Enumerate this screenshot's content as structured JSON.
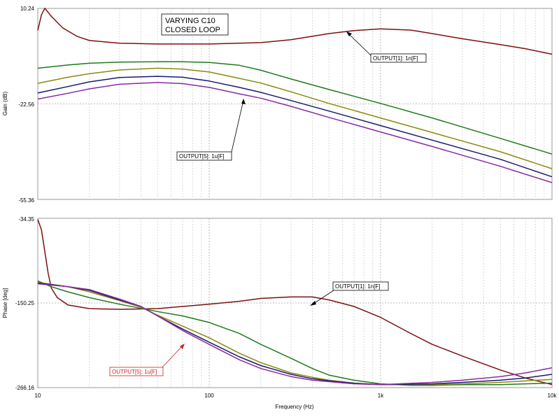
{
  "chart_data": [
    {
      "type": "line",
      "panel": "gain",
      "title_lines": [
        "VARYING C10",
        "CLOSED LOOP"
      ],
      "xlabel": "",
      "ylabel": "Gain (dB)",
      "xscale": "log",
      "xlim": [
        10,
        10000
      ],
      "ylim": [
        -55.36,
        10.24
      ],
      "yticks": [
        "10.24",
        "-22.56",
        "-55.36"
      ],
      "grid": true,
      "series": [
        {
          "color": "#7b1010",
          "points": [
            [
              10,
              2.7
            ],
            [
              10.5,
              8
            ],
            [
              11,
              10.3
            ],
            [
              12,
              7.5
            ],
            [
              14,
              3.5
            ],
            [
              17,
              0.6
            ],
            [
              20,
              -0.8
            ],
            [
              30,
              -1.7
            ],
            [
              50,
              -2.0
            ],
            [
              100,
              -2.0
            ],
            [
              200,
              -1.5
            ],
            [
              300,
              -0.5
            ],
            [
              500,
              1.6
            ],
            [
              700,
              2.6
            ],
            [
              1000,
              3.2
            ],
            [
              1500,
              2.8
            ],
            [
              2000,
              1.6
            ],
            [
              3000,
              -0.2
            ],
            [
              5000,
              -2.2
            ],
            [
              7000,
              -3.6
            ],
            [
              10000,
              -5.5
            ]
          ]
        },
        {
          "color": "#1e7a1e",
          "points": [
            [
              10,
              -10.3
            ],
            [
              15,
              -9.2
            ],
            [
              20,
              -8.6
            ],
            [
              30,
              -8.2
            ],
            [
              50,
              -8.1
            ],
            [
              70,
              -8.1
            ],
            [
              100,
              -8.3
            ],
            [
              150,
              -9.3
            ],
            [
              200,
              -11.0
            ],
            [
              300,
              -14.0
            ],
            [
              500,
              -17.6
            ],
            [
              1000,
              -22.4
            ],
            [
              2000,
              -27.4
            ],
            [
              5000,
              -34.4
            ],
            [
              10000,
              -39.8
            ]
          ]
        },
        {
          "color": "#8a8a10",
          "points": [
            [
              10,
              -15.5
            ],
            [
              15,
              -13.4
            ],
            [
              20,
              -12.2
            ],
            [
              30,
              -10.9
            ],
            [
              50,
              -10.3
            ],
            [
              70,
              -10.6
            ],
            [
              100,
              -11.6
            ],
            [
              150,
              -13.8
            ],
            [
              200,
              -15.4
            ],
            [
              300,
              -18.4
            ],
            [
              500,
              -22.4
            ],
            [
              1000,
              -27.4
            ],
            [
              2000,
              -32.4
            ],
            [
              5000,
              -39.0
            ],
            [
              10000,
              -44.8
            ]
          ]
        },
        {
          "color": "#1a1a70",
          "points": [
            [
              10,
              -18.8
            ],
            [
              15,
              -16.6
            ],
            [
              20,
              -15.0
            ],
            [
              30,
              -13.5
            ],
            [
              50,
              -13.1
            ],
            [
              70,
              -13.4
            ],
            [
              100,
              -14.7
            ],
            [
              150,
              -16.9
            ],
            [
              200,
              -18.6
            ],
            [
              300,
              -21.4
            ],
            [
              500,
              -25.0
            ],
            [
              1000,
              -30.0
            ],
            [
              2000,
              -35.0
            ],
            [
              5000,
              -41.6
            ],
            [
              10000,
              -47.6
            ]
          ]
        },
        {
          "color": "#8a2aa0",
          "points": [
            [
              10,
              -20.9
            ],
            [
              15,
              -18.9
            ],
            [
              20,
              -17.4
            ],
            [
              30,
              -15.8
            ],
            [
              50,
              -15.2
            ],
            [
              70,
              -15.6
            ],
            [
              100,
              -16.9
            ],
            [
              150,
              -19.1
            ],
            [
              200,
              -20.6
            ],
            [
              300,
              -23.4
            ],
            [
              500,
              -27.2
            ],
            [
              1000,
              -32.2
            ],
            [
              2000,
              -37.2
            ],
            [
              5000,
              -44.0
            ],
            [
              10000,
              -49.6
            ]
          ]
        }
      ],
      "annotations": [
        {
          "text": "OUTPUT[1]: 1n[F]"
        },
        {
          "text": "OUTPUT[5]: 1u[F]"
        }
      ]
    },
    {
      "type": "line",
      "panel": "phase",
      "xlabel": "Frequency (Hz)",
      "ylabel": "Phase [deg]",
      "xscale": "log",
      "xlim": [
        10,
        10000
      ],
      "xticks": [
        "10",
        "100",
        "1k",
        "10k"
      ],
      "ylim": [
        -266.16,
        -34.35
      ],
      "yticks": [
        "-34.35",
        "-150.25",
        "-266.16"
      ],
      "grid": true,
      "series": [
        {
          "color": "#7b1010",
          "points": [
            [
              10,
              -36
            ],
            [
              10.5,
              -50
            ],
            [
              11,
              -80
            ],
            [
              11.5,
              -110
            ],
            [
              12,
              -130
            ],
            [
              13,
              -143
            ],
            [
              15,
              -153
            ],
            [
              20,
              -158
            ],
            [
              30,
              -159
            ],
            [
              50,
              -158
            ],
            [
              100,
              -152
            ],
            [
              150,
              -148
            ],
            [
              200,
              -144
            ],
            [
              300,
              -142
            ],
            [
              400,
              -142
            ],
            [
              500,
              -146
            ],
            [
              700,
              -155
            ],
            [
              1000,
              -170
            ],
            [
              1500,
              -192
            ],
            [
              2000,
              -207
            ],
            [
              3000,
              -223
            ],
            [
              5000,
              -242
            ],
            [
              7000,
              -253
            ],
            [
              10000,
              -262
            ]
          ]
        },
        {
          "color": "#1e7a1e",
          "points": [
            [
              10,
              -120
            ],
            [
              12,
              -128
            ],
            [
              15,
              -135
            ],
            [
              20,
              -143
            ],
            [
              30,
              -152
            ],
            [
              50,
              -162
            ],
            [
              70,
              -168
            ],
            [
              100,
              -177
            ],
            [
              150,
              -192
            ],
            [
              200,
              -207
            ],
            [
              300,
              -226
            ],
            [
              400,
              -240
            ],
            [
              500,
              -249
            ],
            [
              700,
              -256
            ],
            [
              1000,
              -261
            ],
            [
              1500,
              -263
            ],
            [
              2000,
              -263
            ],
            [
              3000,
              -262
            ],
            [
              5000,
              -262
            ],
            [
              7000,
              -261
            ],
            [
              10000,
              -260
            ]
          ]
        },
        {
          "color": "#8a8a10",
          "points": [
            [
              10,
              -122
            ],
            [
              15,
              -128
            ],
            [
              20,
              -135
            ],
            [
              30,
              -147
            ],
            [
              40,
              -156
            ],
            [
              50,
              -167
            ],
            [
              70,
              -182
            ],
            [
              100,
              -198
            ],
            [
              150,
              -219
            ],
            [
              200,
              -232
            ],
            [
              300,
              -246
            ],
            [
              400,
              -252
            ],
            [
              500,
              -256
            ],
            [
              700,
              -260
            ],
            [
              1000,
              -262
            ],
            [
              2000,
              -262
            ],
            [
              3000,
              -261
            ],
            [
              5000,
              -259
            ],
            [
              7000,
              -257
            ],
            [
              10000,
              -255
            ]
          ]
        },
        {
          "color": "#1a1a70",
          "points": [
            [
              10,
              -123
            ],
            [
              15,
              -128
            ],
            [
              20,
              -133
            ],
            [
              30,
              -146
            ],
            [
              40,
              -155
            ],
            [
              50,
              -168
            ],
            [
              70,
              -186
            ],
            [
              100,
              -204
            ],
            [
              150,
              -224
            ],
            [
              200,
              -236
            ],
            [
              300,
              -248
            ],
            [
              400,
              -254
            ],
            [
              500,
              -257
            ],
            [
              700,
              -260
            ],
            [
              1000,
              -262
            ],
            [
              2000,
              -261
            ],
            [
              3000,
              -259
            ],
            [
              5000,
              -256
            ],
            [
              7000,
              -253
            ],
            [
              10000,
              -248
            ]
          ]
        },
        {
          "color": "#8a2aa0",
          "points": [
            [
              10,
              -124
            ],
            [
              15,
              -128
            ],
            [
              20,
              -132
            ],
            [
              30,
              -145
            ],
            [
              40,
              -155
            ],
            [
              50,
              -168
            ],
            [
              70,
              -188
            ],
            [
              100,
              -207
            ],
            [
              150,
              -228
            ],
            [
              200,
              -240
            ],
            [
              300,
              -251
            ],
            [
              400,
              -256
            ],
            [
              500,
              -258
            ],
            [
              700,
              -261
            ],
            [
              1000,
              -262
            ],
            [
              2000,
              -259
            ],
            [
              3000,
              -256
            ],
            [
              5000,
              -251
            ],
            [
              7000,
              -246
            ],
            [
              10000,
              -239
            ]
          ]
        }
      ],
      "annotations": [
        {
          "text": "OUTPUT[1]: 1n[F]"
        },
        {
          "text": "OUTPUT[5]: 1u[F]",
          "color": "#cc2222"
        }
      ]
    }
  ]
}
